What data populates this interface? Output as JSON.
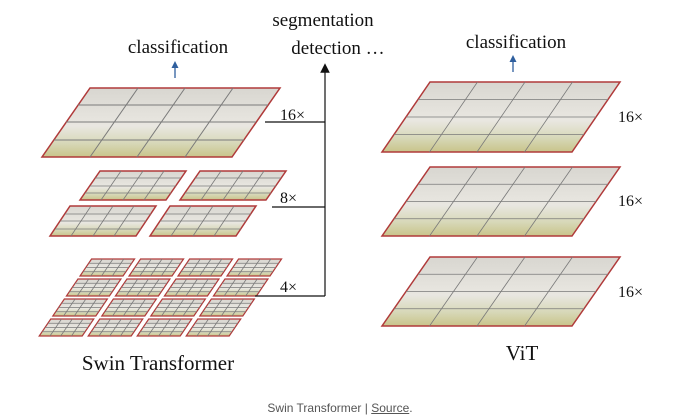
{
  "swin": {
    "title": "Swin Transformer",
    "top_label": "classification",
    "dense_labels": "segmentation",
    "dense_labels_2": "detection …",
    "scales": [
      "16×",
      "8×",
      "4×"
    ]
  },
  "vit": {
    "title": "ViT",
    "top_label": "classification",
    "scales": [
      "16×",
      "16×",
      "16×"
    ]
  },
  "caption": {
    "text": "Swin Transformer | ",
    "link": "Source",
    "end": "."
  },
  "colors": {
    "patch_border": "#b03a3a",
    "grid_line": "#7a7a7a",
    "arrow_blue": "#2f5f9e",
    "connector": "#111111"
  }
}
